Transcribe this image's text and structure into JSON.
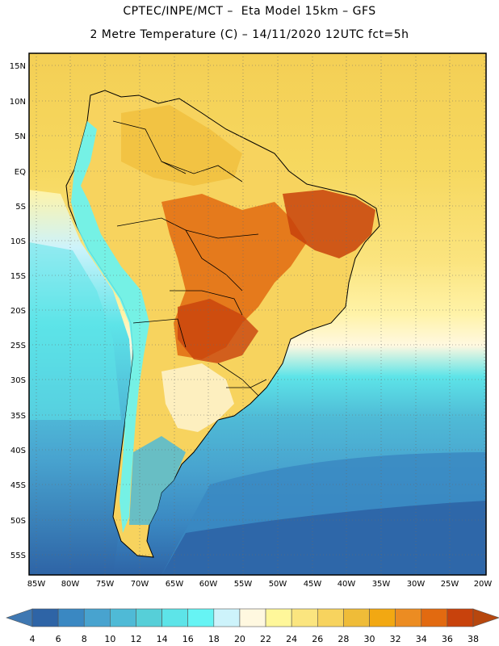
{
  "header": {
    "line1": "CPTEC/INPE/MCT –  Eta Model 15km – GFS",
    "line2": "2 Metre Temperature (C) – 14/11/2020 12UTC fct=5h"
  },
  "map": {
    "region": "South America",
    "lat_range": [
      -58,
      17
    ],
    "lon_range": [
      -86,
      -20
    ],
    "lat_labels": [
      "15N",
      "10N",
      "5N",
      "EQ",
      "5S",
      "10S",
      "15S",
      "20S",
      "25S",
      "30S",
      "35S",
      "40S",
      "45S",
      "50S",
      "55S"
    ],
    "lon_labels": [
      "85W",
      "80W",
      "75W",
      "70W",
      "65W",
      "60W",
      "55W",
      "50W",
      "45W",
      "40W",
      "35W",
      "30W",
      "25W",
      "20W"
    ]
  },
  "colorbar": {
    "ticks": [
      "4",
      "6",
      "8",
      "10",
      "12",
      "14",
      "16",
      "18",
      "20",
      "22",
      "24",
      "26",
      "28",
      "30",
      "32",
      "34",
      "36",
      "38"
    ],
    "colors": [
      "#3f78b2",
      "#2e64a6",
      "#3a88c2",
      "#48a3cf",
      "#4fbad6",
      "#56cfd8",
      "#5de4e8",
      "#66f4f4",
      "#cdf3fb",
      "#fff8e0",
      "#fff79a",
      "#fbe57f",
      "#f7d35e",
      "#efbc38",
      "#f2a812",
      "#ec8c22",
      "#e26a10",
      "#c8420c",
      "#b7470e"
    ]
  },
  "legend_colors": {
    "ocean_cold": "#2e64a6",
    "ocean_mid": "#48a3cf",
    "ocean_warm": "#5de4e8",
    "land_warm": "#f7d35e",
    "land_hot": "#e26a10",
    "land_very_hot": "#c8420c",
    "andes": "#66f4f4"
  }
}
